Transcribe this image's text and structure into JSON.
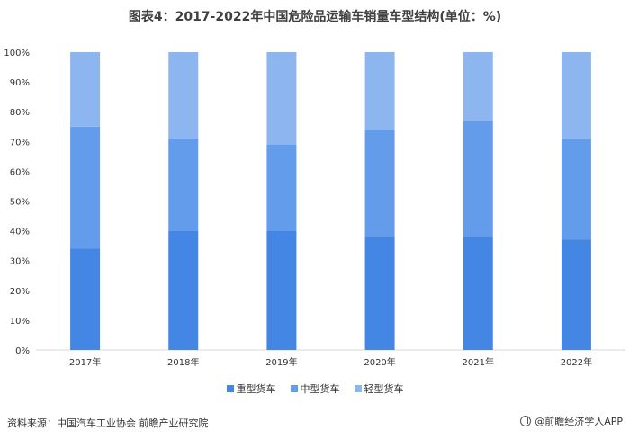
{
  "title": "图表4：2017-2022年中国危险品运输车销量车型结构(单位：%)",
  "chart_data": {
    "type": "bar",
    "stacked": true,
    "categories": [
      "2017年",
      "2018年",
      "2019年",
      "2020年",
      "2021年",
      "2022年"
    ],
    "series": [
      {
        "name": "重型货车",
        "color": "#4386E4",
        "values": [
          34,
          40,
          40,
          38,
          38,
          37
        ]
      },
      {
        "name": "中型货车",
        "color": "#639CEA",
        "values": [
          41,
          31,
          29,
          36,
          39,
          34
        ]
      },
      {
        "name": "轻型货车",
        "color": "#8DB6F0",
        "values": [
          25,
          29,
          31,
          26,
          23,
          29
        ]
      }
    ],
    "yticks": [
      "0%",
      "10%",
      "20%",
      "30%",
      "40%",
      "50%",
      "60%",
      "70%",
      "80%",
      "90%",
      "100%"
    ],
    "ylim": [
      0,
      100
    ],
    "grid": false,
    "legend_position": "bottom"
  },
  "footer": {
    "source": "资料来源：中国汽车工业协会 前瞻产业研究院",
    "brand": "@前瞻经济学人APP"
  },
  "watermark": "前瞻产业研究院"
}
